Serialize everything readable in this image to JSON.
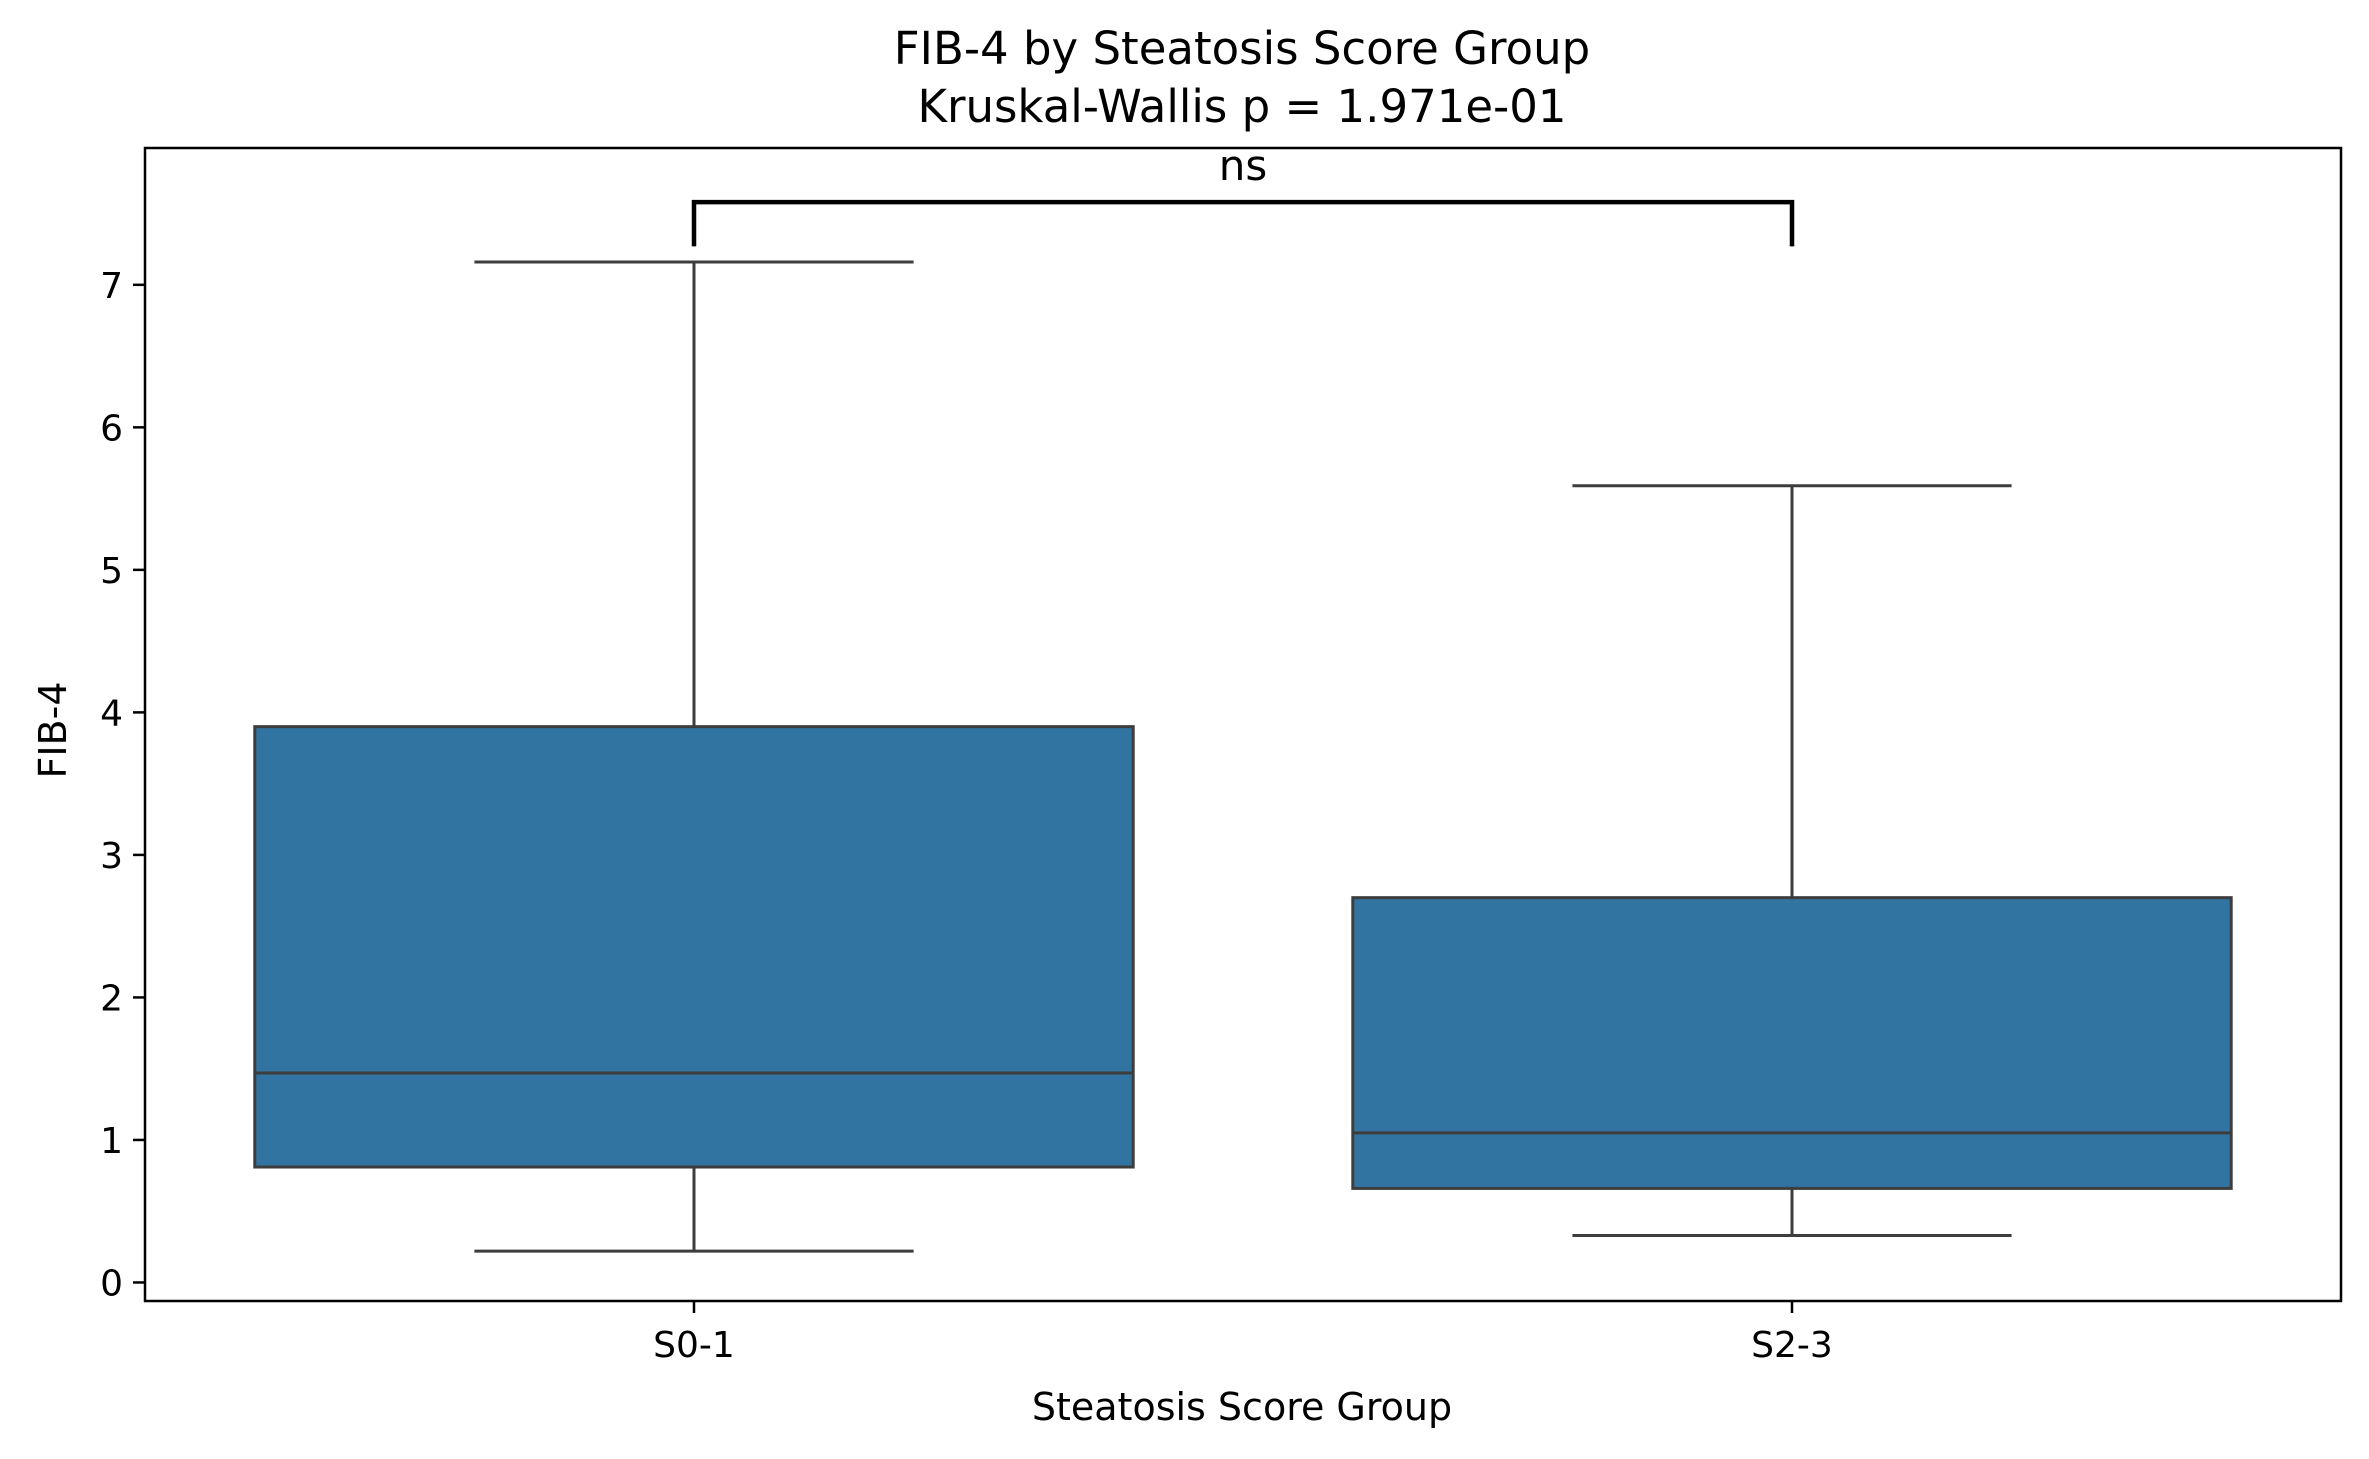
{
  "chart_data": {
    "type": "box",
    "title": "FIB-4 by Steatosis Score Group",
    "subtitle": "Kruskal-Wallis p = 1.971e-01",
    "xlabel": "Steatosis Score Group",
    "ylabel": "FIB-4",
    "categories": [
      "S0-1",
      "S2-3"
    ],
    "boxes": [
      {
        "category": "S0-1",
        "whisker_low": 0.22,
        "q1": 0.81,
        "median": 1.47,
        "q3": 3.9,
        "whisker_high": 7.16
      },
      {
        "category": "S2-3",
        "whisker_low": 0.33,
        "q1": 0.66,
        "median": 1.05,
        "q3": 2.7,
        "whisker_high": 5.59
      }
    ],
    "ylim": [
      -0.13,
      7.96
    ],
    "yticks": [
      "0",
      "1",
      "2",
      "3",
      "4",
      "5",
      "6",
      "7"
    ],
    "box_color": "#3274a1",
    "edge_color": "#3d3d3d",
    "grid": false,
    "annotation": {
      "label": "ns",
      "from": "S0-1",
      "to": "S2-3",
      "bracket_y": 7.58,
      "bracket_drop": 7.27
    }
  }
}
